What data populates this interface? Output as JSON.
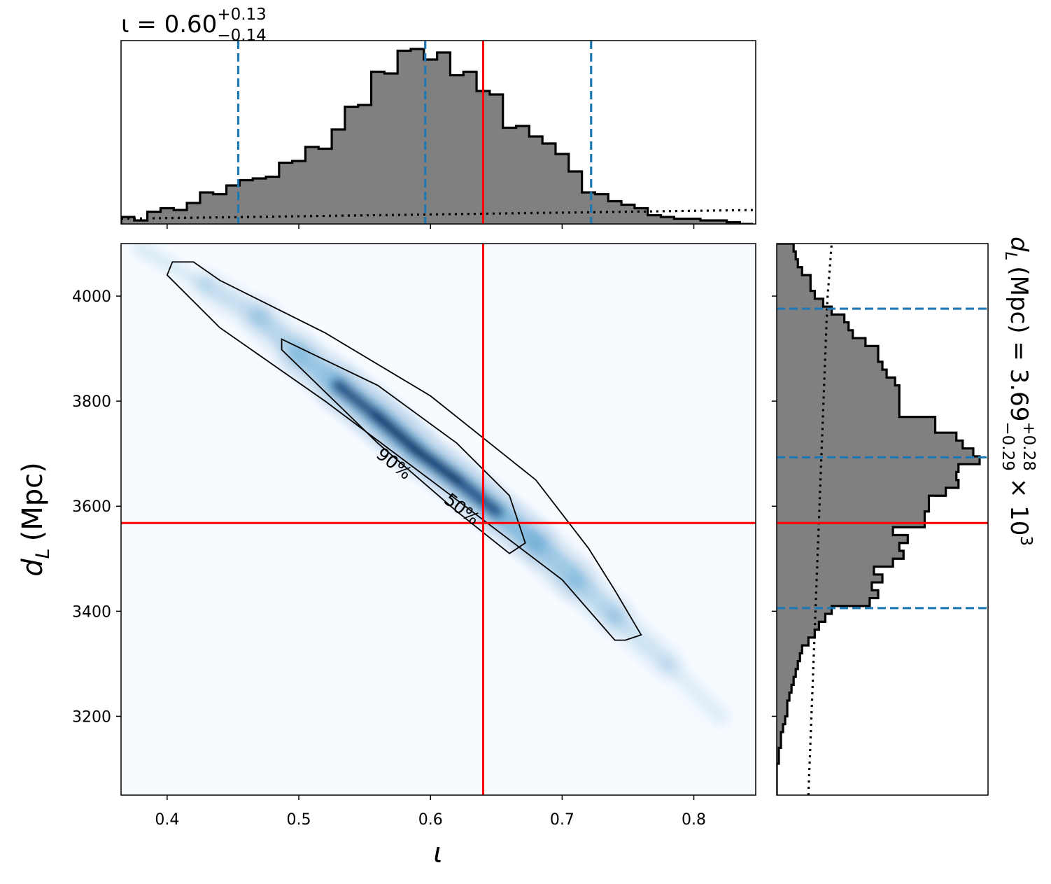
{
  "chart_data": {
    "type": "corner",
    "parameters": {
      "x": {
        "symbol": "ι",
        "range": [
          0.365,
          0.847
        ],
        "ticks": [
          0.4,
          0.5,
          0.6,
          0.7,
          0.8
        ],
        "tick_labels": [
          "0.4",
          "0.5",
          "0.6",
          "0.7",
          "0.8"
        ]
      },
      "y": {
        "symbol": "d",
        "subscript": "L",
        "unit": "(Mpc)",
        "range": [
          3050,
          4100
        ],
        "ticks": [
          3200,
          3400,
          3600,
          3800,
          4000
        ],
        "tick_labels": [
          "3200",
          "3400",
          "3600",
          "3800",
          "4000"
        ]
      }
    },
    "titles": {
      "top": {
        "lhs": "ι = 0.60",
        "plus": "+0.13",
        "minus": "−0.14"
      },
      "right": {
        "lhs": "(Mpc) = 3.69",
        "plus": "+0.28",
        "minus": "−0.29",
        "suffix": "× 10",
        "exponent": "3"
      }
    },
    "injection": {
      "x": 0.64,
      "y": 3568
    },
    "quantile_lines": {
      "x": [
        0.454,
        0.596,
        0.722
      ],
      "y": [
        3406,
        3693,
        3976
      ]
    },
    "colors": {
      "histogram_fill": "#808080",
      "histogram_edge": "#000000",
      "quantile": "#1f77b4",
      "injection": "#ff0000",
      "density_low": "#f7fbff",
      "density_high": "#08306b"
    },
    "hist_x": {
      "bin_edges": [
        0.365,
        0.375,
        0.385,
        0.395,
        0.405,
        0.415,
        0.425,
        0.435,
        0.445,
        0.455,
        0.465,
        0.475,
        0.485,
        0.495,
        0.505,
        0.515,
        0.525,
        0.535,
        0.545,
        0.555,
        0.565,
        0.575,
        0.585,
        0.595,
        0.605,
        0.615,
        0.625,
        0.635,
        0.645,
        0.655,
        0.665,
        0.675,
        0.685,
        0.695,
        0.705,
        0.715,
        0.725,
        0.735,
        0.745,
        0.755,
        0.765,
        0.775,
        0.785,
        0.795,
        0.805,
        0.815,
        0.825,
        0.835,
        0.845
      ],
      "counts": [
        4,
        2,
        7,
        9,
        8,
        12,
        18,
        17,
        22,
        25,
        26,
        27,
        35,
        36,
        44,
        43,
        54,
        67,
        68,
        87,
        86,
        99,
        100,
        94,
        98,
        85,
        87,
        76,
        74,
        55,
        56,
        50,
        46,
        40,
        30,
        18,
        17,
        13,
        11,
        9,
        5,
        4,
        3,
        3,
        2,
        2,
        1,
        0
      ],
      "prior_level": [
        3,
        3.5,
        4,
        4.5,
        5,
        5.5,
        6,
        6.5,
        7,
        7.5,
        8
      ]
    },
    "hist_y": {
      "bin_edges": [
        3050,
        3065,
        3080,
        3095,
        3110,
        3125,
        3140,
        3155,
        3170,
        3185,
        3200,
        3215,
        3230,
        3245,
        3260,
        3275,
        3290,
        3305,
        3320,
        3335,
        3350,
        3365,
        3380,
        3395,
        3410,
        3425,
        3440,
        3455,
        3470,
        3485,
        3500,
        3515,
        3530,
        3545,
        3560,
        3575,
        3590,
        3605,
        3620,
        3635,
        3650,
        3665,
        3680,
        3695,
        3710,
        3725,
        3740,
        3755,
        3770,
        3785,
        3800,
        3815,
        3830,
        3845,
        3860,
        3875,
        3890,
        3905,
        3920,
        3935,
        3950,
        3965,
        3980,
        3995,
        4010,
        4025,
        4040,
        4055,
        4070,
        4085,
        4100
      ],
      "counts": [
        0,
        0,
        0,
        0,
        1,
        1,
        2,
        2,
        3,
        4,
        5,
        5,
        6,
        7,
        8,
        9,
        10,
        11,
        12,
        15,
        18,
        20,
        23,
        26,
        44,
        48,
        45,
        50,
        46,
        55,
        60,
        58,
        62,
        55,
        70,
        70,
        72,
        72,
        80,
        86,
        85,
        86,
        96,
        93,
        88,
        85,
        75,
        75,
        58,
        58,
        58,
        58,
        56,
        52,
        50,
        48,
        48,
        42,
        36,
        34,
        32,
        26,
        22,
        18,
        16,
        16,
        12,
        10,
        9,
        8
      ],
      "prior_level": [
        15,
        16,
        17,
        18,
        19,
        20,
        21,
        22,
        23,
        24,
        26
      ]
    },
    "contour_labels": [
      "90%",
      "50%"
    ],
    "contour_90": [
      [
        0.404,
        4065
      ],
      [
        0.42,
        4065
      ],
      [
        0.44,
        4030
      ],
      [
        0.52,
        3930
      ],
      [
        0.6,
        3810
      ],
      [
        0.68,
        3650
      ],
      [
        0.72,
        3520
      ],
      [
        0.74,
        3440
      ],
      [
        0.76,
        3355
      ],
      [
        0.748,
        3345
      ],
      [
        0.74,
        3345
      ],
      [
        0.7,
        3460
      ],
      [
        0.6,
        3650
      ],
      [
        0.52,
        3800
      ],
      [
        0.44,
        3940
      ],
      [
        0.4,
        4040
      ]
    ],
    "contour_50": [
      [
        0.487,
        3918
      ],
      [
        0.56,
        3830
      ],
      [
        0.62,
        3720
      ],
      [
        0.66,
        3620
      ],
      [
        0.672,
        3530
      ],
      [
        0.66,
        3510
      ],
      [
        0.62,
        3590
      ],
      [
        0.56,
        3720
      ],
      [
        0.487,
        3898
      ]
    ]
  }
}
